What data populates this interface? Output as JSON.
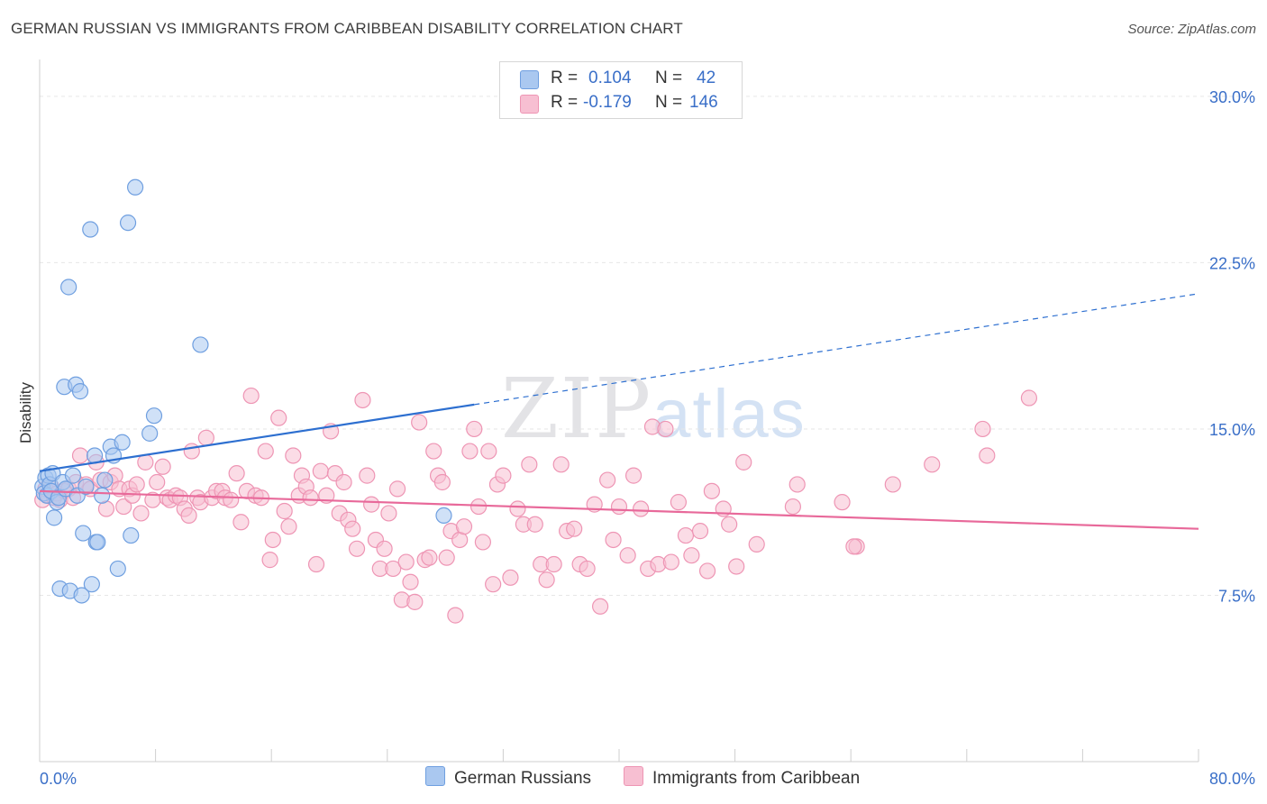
{
  "title": "GERMAN RUSSIAN VS IMMIGRANTS FROM CARIBBEAN DISABILITY CORRELATION CHART",
  "source": "Source: ZipAtlas.com",
  "watermark": {
    "zip": "ZIP",
    "atlas": "atlas"
  },
  "legend": {
    "r_label": "R =",
    "n_label": "N =",
    "series1": {
      "r": "0.104",
      "n": "42"
    },
    "series2": {
      "r": "-0.179",
      "n": "146"
    }
  },
  "bottom_legend": {
    "series1": "German Russians",
    "series2": "Immigrants from Caribbean"
  },
  "colors": {
    "blue_fill": "#aac8f0",
    "blue_stroke": "#6f9fe0",
    "blue_line": "#2d6fd0",
    "pink_fill": "#f7bfd2",
    "pink_stroke": "#ee95b4",
    "pink_line": "#e8699a",
    "axis_text": "#3a6fc8",
    "grid": "#e6e6e6"
  },
  "chart_data": {
    "type": "scatter",
    "title": "GERMAN RUSSIAN VS IMMIGRANTS FROM CARIBBEAN DISABILITY CORRELATION CHART",
    "xlabel": "",
    "ylabel": "Disability",
    "xlim": [
      0,
      80
    ],
    "ylim": [
      0,
      31.5
    ],
    "x_tick_labels": [
      "0.0%",
      "80.0%"
    ],
    "y_ticks": [
      7.5,
      15.0,
      22.5,
      30.0
    ],
    "y_tick_labels": [
      "7.5%",
      "15.0%",
      "22.5%",
      "30.0%"
    ],
    "series": [
      {
        "name": "German Russians",
        "r": 0.104,
        "n": 42,
        "trend": {
          "x0": 0,
          "y0": 13.1,
          "x1": 30,
          "y1": 16.1,
          "dash_to_x": 80,
          "dash_to_y": 21.1
        },
        "points": [
          [
            0.2,
            12.4
          ],
          [
            0.3,
            12.1
          ],
          [
            0.4,
            12.8
          ],
          [
            0.5,
            12.0
          ],
          [
            0.6,
            12.9
          ],
          [
            0.7,
            12.5
          ],
          [
            0.8,
            12.2
          ],
          [
            0.9,
            13.0
          ],
          [
            1.0,
            11.0
          ],
          [
            1.2,
            11.7
          ],
          [
            1.3,
            11.9
          ],
          [
            1.4,
            7.8
          ],
          [
            1.6,
            12.6
          ],
          [
            1.7,
            16.9
          ],
          [
            1.8,
            12.3
          ],
          [
            2.0,
            21.4
          ],
          [
            2.1,
            7.7
          ],
          [
            2.3,
            12.9
          ],
          [
            2.5,
            17.0
          ],
          [
            2.6,
            12.0
          ],
          [
            2.8,
            16.7
          ],
          [
            2.9,
            7.5
          ],
          [
            3.0,
            10.3
          ],
          [
            3.2,
            12.4
          ],
          [
            3.5,
            24.0
          ],
          [
            3.6,
            8.0
          ],
          [
            3.8,
            13.8
          ],
          [
            3.9,
            9.9
          ],
          [
            4.3,
            12.0
          ],
          [
            4.5,
            12.7
          ],
          [
            4.9,
            14.2
          ],
          [
            5.1,
            13.8
          ],
          [
            5.4,
            8.7
          ],
          [
            5.7,
            14.4
          ],
          [
            6.1,
            24.3
          ],
          [
            6.3,
            10.2
          ],
          [
            6.6,
            25.9
          ],
          [
            7.6,
            14.8
          ],
          [
            7.9,
            15.6
          ],
          [
            11.1,
            18.8
          ],
          [
            27.9,
            11.1
          ],
          [
            4.0,
            9.9
          ]
        ]
      },
      {
        "name": "Immigrants from Caribbean",
        "r": -0.179,
        "n": 146,
        "trend": {
          "x0": 0,
          "y0": 12.2,
          "x1": 80,
          "y1": 10.5
        },
        "points": [
          [
            0.2,
            11.8
          ],
          [
            0.4,
            12.3
          ],
          [
            0.6,
            12.0
          ],
          [
            0.8,
            12.4
          ],
          [
            1.0,
            11.9
          ],
          [
            1.2,
            12.1
          ],
          [
            1.4,
            11.8
          ],
          [
            1.7,
            12.2
          ],
          [
            2.0,
            12.3
          ],
          [
            2.3,
            11.9
          ],
          [
            2.5,
            12.6
          ],
          [
            2.8,
            13.8
          ],
          [
            3.2,
            12.5
          ],
          [
            3.5,
            12.3
          ],
          [
            3.9,
            13.5
          ],
          [
            4.2,
            12.7
          ],
          [
            4.6,
            11.4
          ],
          [
            4.9,
            12.6
          ],
          [
            5.2,
            12.9
          ],
          [
            5.5,
            12.3
          ],
          [
            5.8,
            11.5
          ],
          [
            6.2,
            12.3
          ],
          [
            6.4,
            12.0
          ],
          [
            6.7,
            12.5
          ],
          [
            7.0,
            11.2
          ],
          [
            7.3,
            13.5
          ],
          [
            7.8,
            11.8
          ],
          [
            8.1,
            12.6
          ],
          [
            8.5,
            13.3
          ],
          [
            8.8,
            11.9
          ],
          [
            9.0,
            11.8
          ],
          [
            9.4,
            12.0
          ],
          [
            9.7,
            11.9
          ],
          [
            10.0,
            11.4
          ],
          [
            10.3,
            11.1
          ],
          [
            10.5,
            14.0
          ],
          [
            10.9,
            11.9
          ],
          [
            11.1,
            11.7
          ],
          [
            11.5,
            14.6
          ],
          [
            11.9,
            11.9
          ],
          [
            12.2,
            12.2
          ],
          [
            12.6,
            12.2
          ],
          [
            12.8,
            11.9
          ],
          [
            13.2,
            11.8
          ],
          [
            13.6,
            13.0
          ],
          [
            13.9,
            10.8
          ],
          [
            14.3,
            12.2
          ],
          [
            14.6,
            16.5
          ],
          [
            14.9,
            12.0
          ],
          [
            15.3,
            11.9
          ],
          [
            15.6,
            14.0
          ],
          [
            15.9,
            9.1
          ],
          [
            16.1,
            10.0
          ],
          [
            16.5,
            15.5
          ],
          [
            16.9,
            11.3
          ],
          [
            17.2,
            10.6
          ],
          [
            17.5,
            13.8
          ],
          [
            17.9,
            12.0
          ],
          [
            18.1,
            12.9
          ],
          [
            18.4,
            12.4
          ],
          [
            18.7,
            11.9
          ],
          [
            19.1,
            8.9
          ],
          [
            19.4,
            13.1
          ],
          [
            19.8,
            12.0
          ],
          [
            20.1,
            14.9
          ],
          [
            20.4,
            13.0
          ],
          [
            20.7,
            11.2
          ],
          [
            21.0,
            12.6
          ],
          [
            21.3,
            10.9
          ],
          [
            21.6,
            10.5
          ],
          [
            21.9,
            9.6
          ],
          [
            22.3,
            16.3
          ],
          [
            22.6,
            12.9
          ],
          [
            22.9,
            11.6
          ],
          [
            23.2,
            10.0
          ],
          [
            23.5,
            8.7
          ],
          [
            23.8,
            9.6
          ],
          [
            24.1,
            11.2
          ],
          [
            24.4,
            8.7
          ],
          [
            24.7,
            12.3
          ],
          [
            25.0,
            7.3
          ],
          [
            25.3,
            9.0
          ],
          [
            25.6,
            8.1
          ],
          [
            25.9,
            7.2
          ],
          [
            26.2,
            15.3
          ],
          [
            26.6,
            9.1
          ],
          [
            26.9,
            9.2
          ],
          [
            27.2,
            14.0
          ],
          [
            27.5,
            12.9
          ],
          [
            27.8,
            12.6
          ],
          [
            28.1,
            9.2
          ],
          [
            28.4,
            10.4
          ],
          [
            28.7,
            6.6
          ],
          [
            29.0,
            10.0
          ],
          [
            29.3,
            10.6
          ],
          [
            29.7,
            14.0
          ],
          [
            30.0,
            15.0
          ],
          [
            30.3,
            11.5
          ],
          [
            30.6,
            9.9
          ],
          [
            31.0,
            14.0
          ],
          [
            31.3,
            8.0
          ],
          [
            31.6,
            12.5
          ],
          [
            32.0,
            12.9
          ],
          [
            32.5,
            8.3
          ],
          [
            33.0,
            11.4
          ],
          [
            33.4,
            10.7
          ],
          [
            33.8,
            13.4
          ],
          [
            34.2,
            10.7
          ],
          [
            34.6,
            8.9
          ],
          [
            35.0,
            8.2
          ],
          [
            35.5,
            8.9
          ],
          [
            36.0,
            13.4
          ],
          [
            36.4,
            10.4
          ],
          [
            36.9,
            10.5
          ],
          [
            37.3,
            8.9
          ],
          [
            37.8,
            8.7
          ],
          [
            38.3,
            11.6
          ],
          [
            38.7,
            7.0
          ],
          [
            39.2,
            12.7
          ],
          [
            39.6,
            10.0
          ],
          [
            40.0,
            11.5
          ],
          [
            40.6,
            9.3
          ],
          [
            41.0,
            12.9
          ],
          [
            41.5,
            11.4
          ],
          [
            42.0,
            8.7
          ],
          [
            42.3,
            15.1
          ],
          [
            42.7,
            8.9
          ],
          [
            43.2,
            15.0
          ],
          [
            43.6,
            9.0
          ],
          [
            44.1,
            11.7
          ],
          [
            44.6,
            10.2
          ],
          [
            45.0,
            9.3
          ],
          [
            45.6,
            10.4
          ],
          [
            46.1,
            8.6
          ],
          [
            46.4,
            12.2
          ],
          [
            47.2,
            11.4
          ],
          [
            48.1,
            8.8
          ],
          [
            47.6,
            10.7
          ],
          [
            48.6,
            13.5
          ],
          [
            49.5,
            9.8
          ],
          [
            52.0,
            11.5
          ],
          [
            52.3,
            12.5
          ],
          [
            55.4,
            11.7
          ],
          [
            56.4,
            9.7
          ],
          [
            56.2,
            9.7
          ],
          [
            58.9,
            12.5
          ],
          [
            61.6,
            13.4
          ],
          [
            65.1,
            15.0
          ],
          [
            65.4,
            13.8
          ],
          [
            68.3,
            16.4
          ]
        ]
      }
    ]
  }
}
